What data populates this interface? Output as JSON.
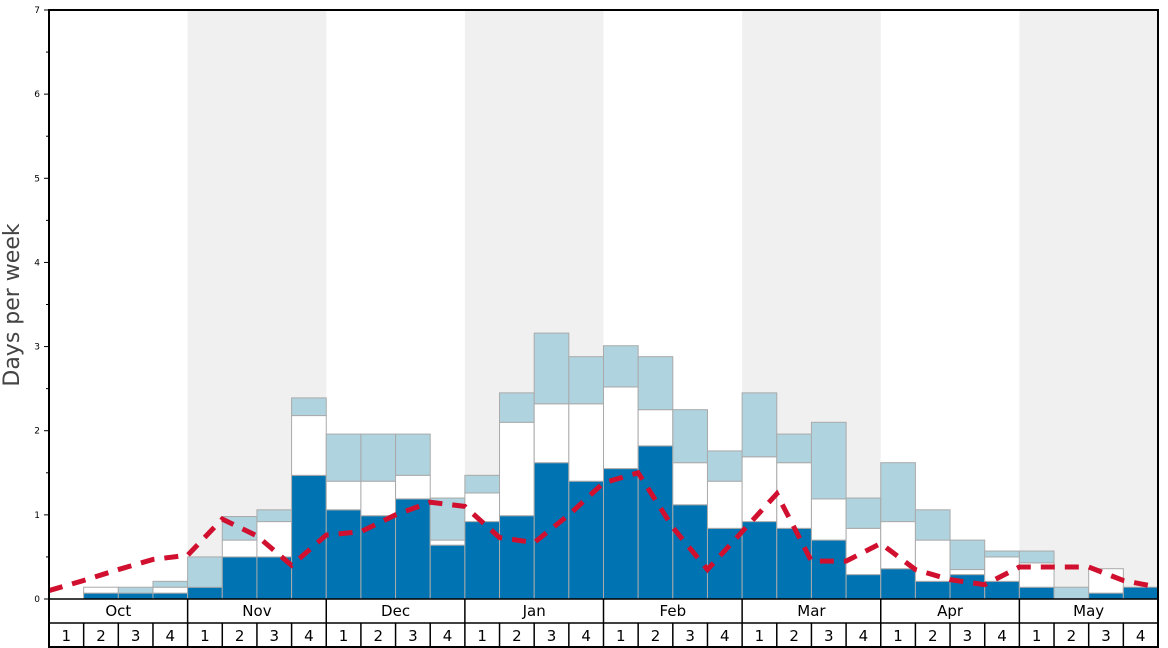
{
  "chart_data": {
    "type": "bar",
    "stacked": true,
    "title": "",
    "xlabel": "",
    "ylabel": "Days per week",
    "ylim": [
      0,
      7
    ],
    "yticks": [
      "0",
      "1",
      "2",
      "3",
      "4",
      "5",
      "6",
      "7"
    ],
    "months": [
      "Oct",
      "Nov",
      "Dec",
      "Jan",
      "Feb",
      "Mar",
      "Apr",
      "May"
    ],
    "week_labels": [
      "1",
      "2",
      "3",
      "4"
    ],
    "colors": {
      "bottom": "#0074b3",
      "middle": "#ffffff",
      "top": "#afd3df",
      "line": "#d0102e",
      "shade": "#f0f0f0"
    },
    "series_cumulative": [
      {
        "name": "bottom",
        "values": [
          0,
          0.07,
          0.07,
          0.07,
          0.14,
          0.5,
          0.5,
          1.47,
          1.06,
          0.99,
          1.19,
          0.64,
          0.92,
          0.99,
          1.62,
          1.4,
          1.55,
          1.82,
          1.12,
          0.84,
          0.92,
          0.84,
          0.7,
          0.29,
          0.36,
          0.21,
          0.29,
          0.21,
          0.14,
          0,
          0.07,
          0.14
        ]
      },
      {
        "name": "middle",
        "values": [
          0,
          0.14,
          0.07,
          0.14,
          0.14,
          0.7,
          0.92,
          2.18,
          1.4,
          1.4,
          1.47,
          0.7,
          1.26,
          2.1,
          2.32,
          2.32,
          2.52,
          2.25,
          1.62,
          1.4,
          1.69,
          1.62,
          1.19,
          0.84,
          0.92,
          0.7,
          0.35,
          0.5,
          0.43,
          0,
          0.36,
          0.14
        ]
      },
      {
        "name": "top",
        "values": [
          0,
          0.14,
          0.14,
          0.21,
          0.5,
          0.98,
          1.06,
          2.39,
          1.96,
          1.96,
          1.96,
          1.2,
          1.47,
          2.45,
          3.16,
          2.88,
          3.01,
          2.88,
          2.25,
          1.76,
          2.45,
          1.96,
          2.1,
          1.2,
          1.62,
          1.06,
          0.7,
          0.57,
          0.57,
          0.14,
          0.36,
          0.14
        ]
      }
    ],
    "average_line": [
      0.1,
      0.22,
      0.35,
      0.47,
      0.52,
      0.95,
      0.75,
      0.4,
      0.76,
      0.8,
      1.0,
      1.15,
      1.1,
      0.73,
      0.67,
      1.0,
      1.38,
      1.5,
      0.85,
      0.35,
      0.8,
      1.25,
      0.45,
      0.45,
      0.66,
      0.35,
      0.23,
      0.17,
      0.38,
      0.38,
      0.38,
      0.22,
      0.14
    ]
  }
}
